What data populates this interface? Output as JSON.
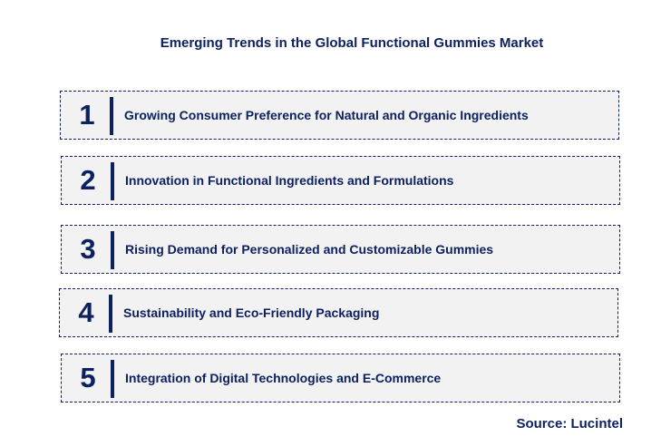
{
  "title": "Emerging Trends in the Global Functional Gummies Market",
  "items": [
    {
      "number": "1",
      "label": "Growing Consumer Preference for Natural and Organic Ingredients"
    },
    {
      "number": "2",
      "label": "Innovation in Functional Ingredients and Formulations"
    },
    {
      "number": "3",
      "label": "Rising Demand for Personalized and Customizable Gummies"
    },
    {
      "number": "4",
      "label": "Sustainability and Eco-Friendly Packaging"
    },
    {
      "number": "5",
      "label": "Integration of Digital Technologies and E-Commerce"
    }
  ],
  "source": "Source: Lucintel",
  "colors": {
    "text": "#0d2160",
    "box_background": "#f2f2f2"
  }
}
